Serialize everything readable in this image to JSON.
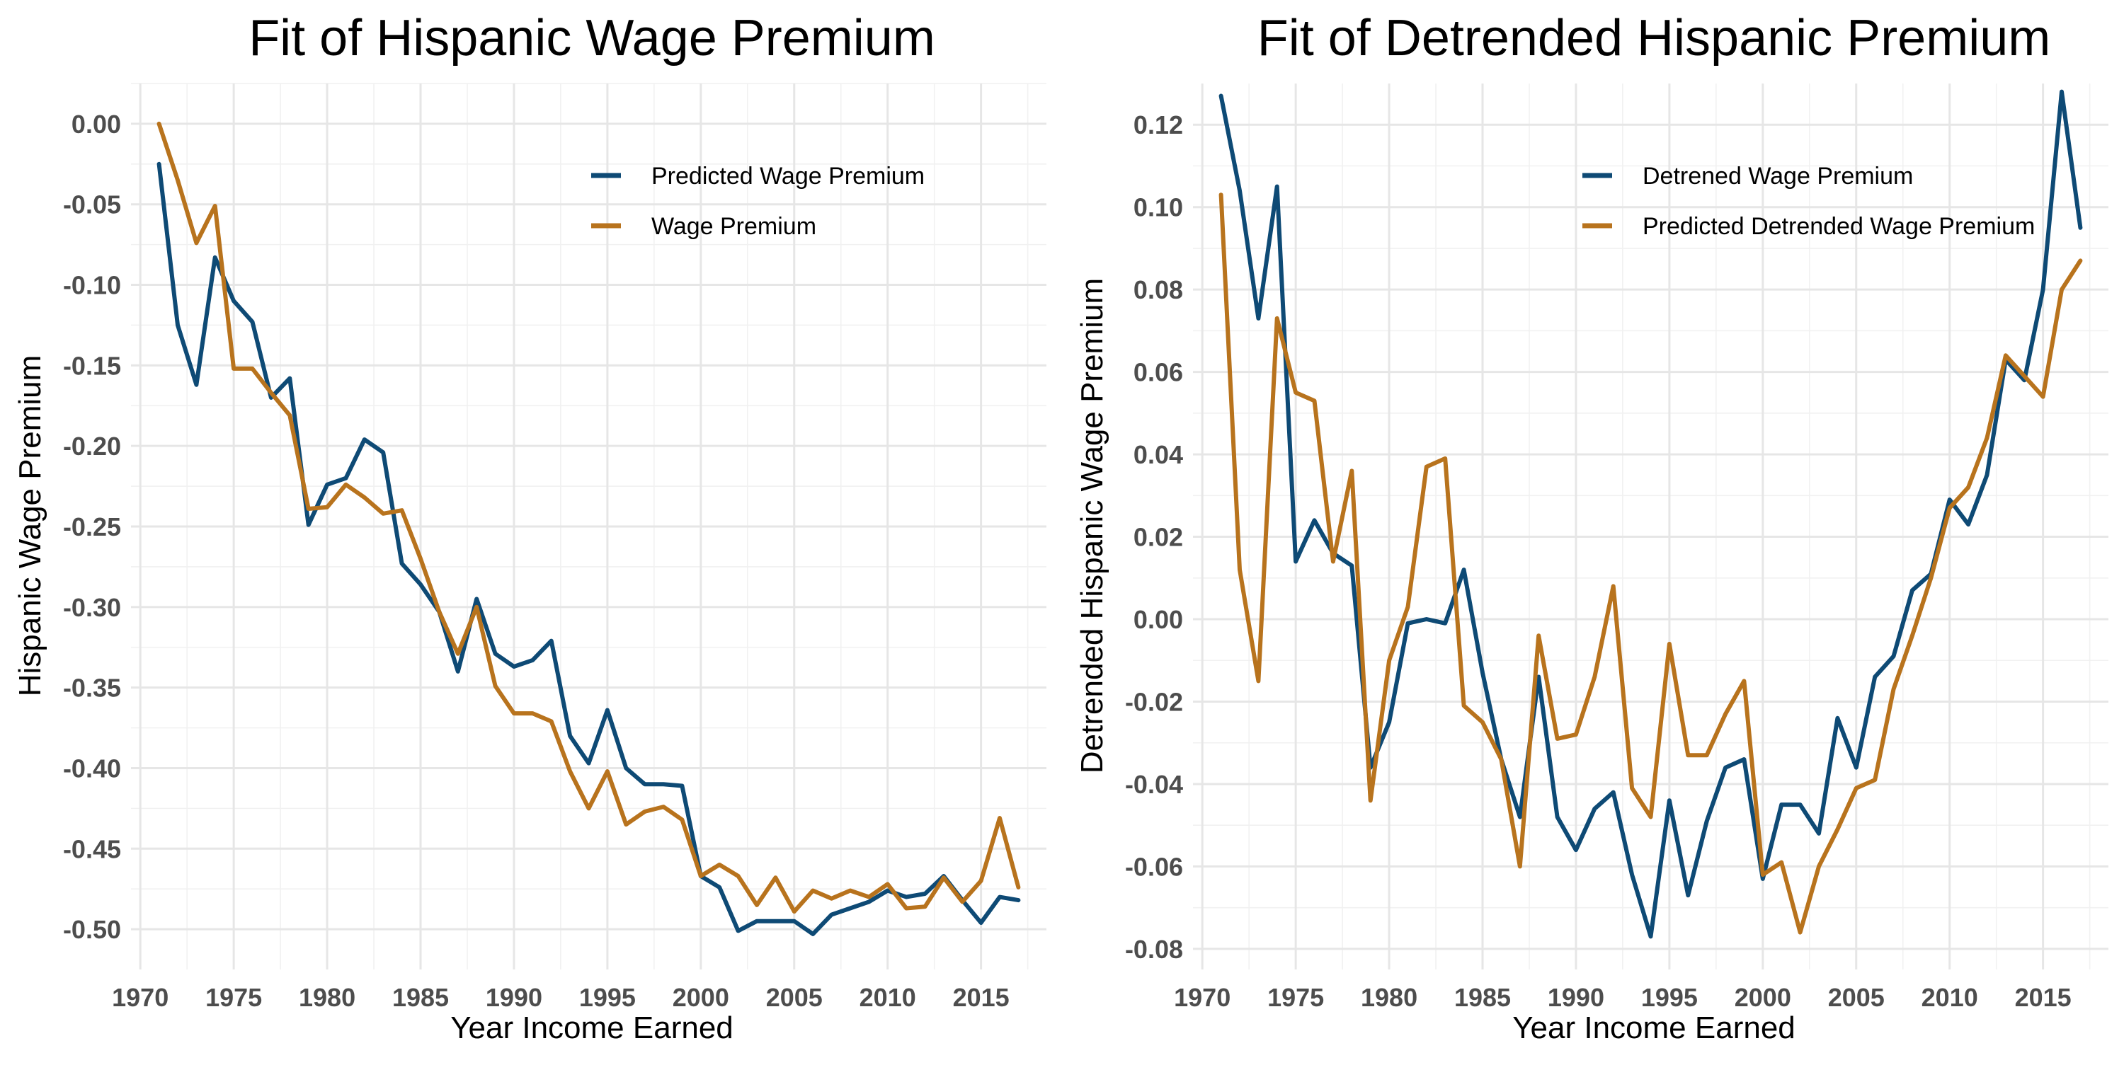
{
  "colors": {
    "blue": "#0e4a75",
    "orange": "#b8731d"
  },
  "chart_data": [
    {
      "type": "line",
      "title": "Fit of Hispanic Wage Premium",
      "xlabel": "Year Income Earned",
      "ylabel": "Hispanic Wage Premium",
      "xlim": [
        1969.5,
        2018.5
      ],
      "ylim": [
        -0.525,
        0.025
      ],
      "xticks": [
        "1970",
        "1975",
        "1980",
        "1985",
        "1990",
        "1995",
        "2000",
        "2005",
        "2010",
        "2015"
      ],
      "yticks": [
        "0.00",
        "-0.05",
        "-0.10",
        "-0.15",
        "-0.20",
        "-0.25",
        "-0.30",
        "-0.35",
        "-0.40",
        "-0.45",
        "-0.50"
      ],
      "legend_position": "top-right",
      "grid": true,
      "x": [
        1971,
        1972,
        1973,
        1974,
        1975,
        1976,
        1977,
        1978,
        1979,
        1980,
        1981,
        1982,
        1983,
        1984,
        1985,
        1986,
        1987,
        1988,
        1989,
        1990,
        1991,
        1992,
        1993,
        1994,
        1995,
        1996,
        1997,
        1998,
        1999,
        2000,
        2001,
        2002,
        2003,
        2004,
        2005,
        2006,
        2007,
        2008,
        2009,
        2010,
        2011,
        2012,
        2013,
        2014,
        2015,
        2016,
        2017
      ],
      "series": [
        {
          "name": "Predicted Wage Premium",
          "color": "#0e4a75",
          "values": [
            -0.025,
            -0.125,
            -0.162,
            -0.083,
            -0.11,
            -0.123,
            -0.17,
            -0.158,
            -0.249,
            -0.224,
            -0.22,
            -0.196,
            -0.204,
            -0.273,
            -0.286,
            -0.303,
            -0.34,
            -0.295,
            -0.329,
            -0.337,
            -0.333,
            -0.321,
            -0.38,
            -0.397,
            -0.364,
            -0.4,
            -0.41,
            -0.41,
            -0.411,
            -0.467,
            -0.474,
            -0.501,
            -0.495,
            -0.495,
            -0.495,
            -0.503,
            -0.491,
            -0.487,
            -0.483,
            -0.476,
            -0.48,
            -0.478,
            -0.467,
            -0.482,
            -0.496,
            -0.48,
            -0.482
          ]
        },
        {
          "name": "Wage Premium",
          "color": "#b8731d",
          "values": [
            0.0,
            -0.035,
            -0.074,
            -0.051,
            -0.152,
            -0.152,
            -0.167,
            -0.181,
            -0.239,
            -0.238,
            -0.224,
            -0.232,
            -0.242,
            -0.24,
            -0.27,
            -0.303,
            -0.329,
            -0.3,
            -0.349,
            -0.366,
            -0.366,
            -0.371,
            -0.402,
            -0.425,
            -0.402,
            -0.435,
            -0.427,
            -0.424,
            -0.432,
            -0.467,
            -0.46,
            -0.467,
            -0.485,
            -0.468,
            -0.489,
            -0.476,
            -0.481,
            -0.476,
            -0.48,
            -0.472,
            -0.487,
            -0.486,
            -0.468,
            -0.483,
            -0.47,
            -0.431,
            -0.474
          ]
        }
      ]
    },
    {
      "type": "line",
      "title": "Fit of Detrended Hispanic Premium",
      "xlabel": "Year Income Earned",
      "ylabel": "Detrended Hispanic Wage Premium",
      "xlim": [
        1969.5,
        2018.5
      ],
      "ylim": [
        -0.085,
        0.13
      ],
      "xticks": [
        "1970",
        "1975",
        "1980",
        "1985",
        "1990",
        "1995",
        "2000",
        "2005",
        "2010",
        "2015"
      ],
      "yticks": [
        "0.12",
        "0.10",
        "0.08",
        "0.06",
        "0.04",
        "0.02",
        "0.00",
        "-0.02",
        "-0.04",
        "-0.06",
        "-0.08"
      ],
      "legend_position": "top-right",
      "grid": true,
      "x": [
        1971,
        1972,
        1973,
        1974,
        1975,
        1976,
        1977,
        1978,
        1979,
        1980,
        1981,
        1982,
        1983,
        1984,
        1985,
        1986,
        1987,
        1988,
        1989,
        1990,
        1991,
        1992,
        1993,
        1994,
        1995,
        1996,
        1997,
        1998,
        1999,
        2000,
        2001,
        2002,
        2003,
        2004,
        2005,
        2006,
        2007,
        2008,
        2009,
        2010,
        2011,
        2012,
        2013,
        2014,
        2015,
        2016,
        2017
      ],
      "series": [
        {
          "name": "Detrened Wage Premium",
          "color": "#0e4a75",
          "values": [
            0.127,
            0.104,
            0.073,
            0.105,
            0.014,
            0.024,
            0.016,
            0.013,
            -0.036,
            -0.025,
            -0.001,
            0.0,
            -0.001,
            0.012,
            -0.013,
            -0.034,
            -0.048,
            -0.014,
            -0.048,
            -0.056,
            -0.046,
            -0.042,
            -0.062,
            -0.077,
            -0.044,
            -0.067,
            -0.049,
            -0.036,
            -0.034,
            -0.063,
            -0.045,
            -0.045,
            -0.052,
            -0.024,
            -0.036,
            -0.014,
            -0.009,
            0.007,
            0.011,
            0.029,
            0.023,
            0.035,
            0.063,
            0.058,
            0.08,
            0.128,
            0.095
          ]
        },
        {
          "name": "Predicted Detrended Wage Premium",
          "color": "#b8731d",
          "values": [
            0.103,
            0.012,
            -0.015,
            0.073,
            0.055,
            0.053,
            0.014,
            0.036,
            -0.044,
            -0.01,
            0.003,
            0.037,
            0.039,
            -0.021,
            -0.025,
            -0.034,
            -0.06,
            -0.004,
            -0.029,
            -0.028,
            -0.014,
            0.008,
            -0.041,
            -0.048,
            -0.006,
            -0.033,
            -0.033,
            -0.023,
            -0.015,
            -0.062,
            -0.059,
            -0.076,
            -0.06,
            -0.051,
            -0.041,
            -0.039,
            -0.017,
            -0.004,
            0.01,
            0.027,
            0.032,
            0.044,
            0.064,
            0.059,
            0.054,
            0.08,
            0.087
          ]
        }
      ]
    }
  ]
}
